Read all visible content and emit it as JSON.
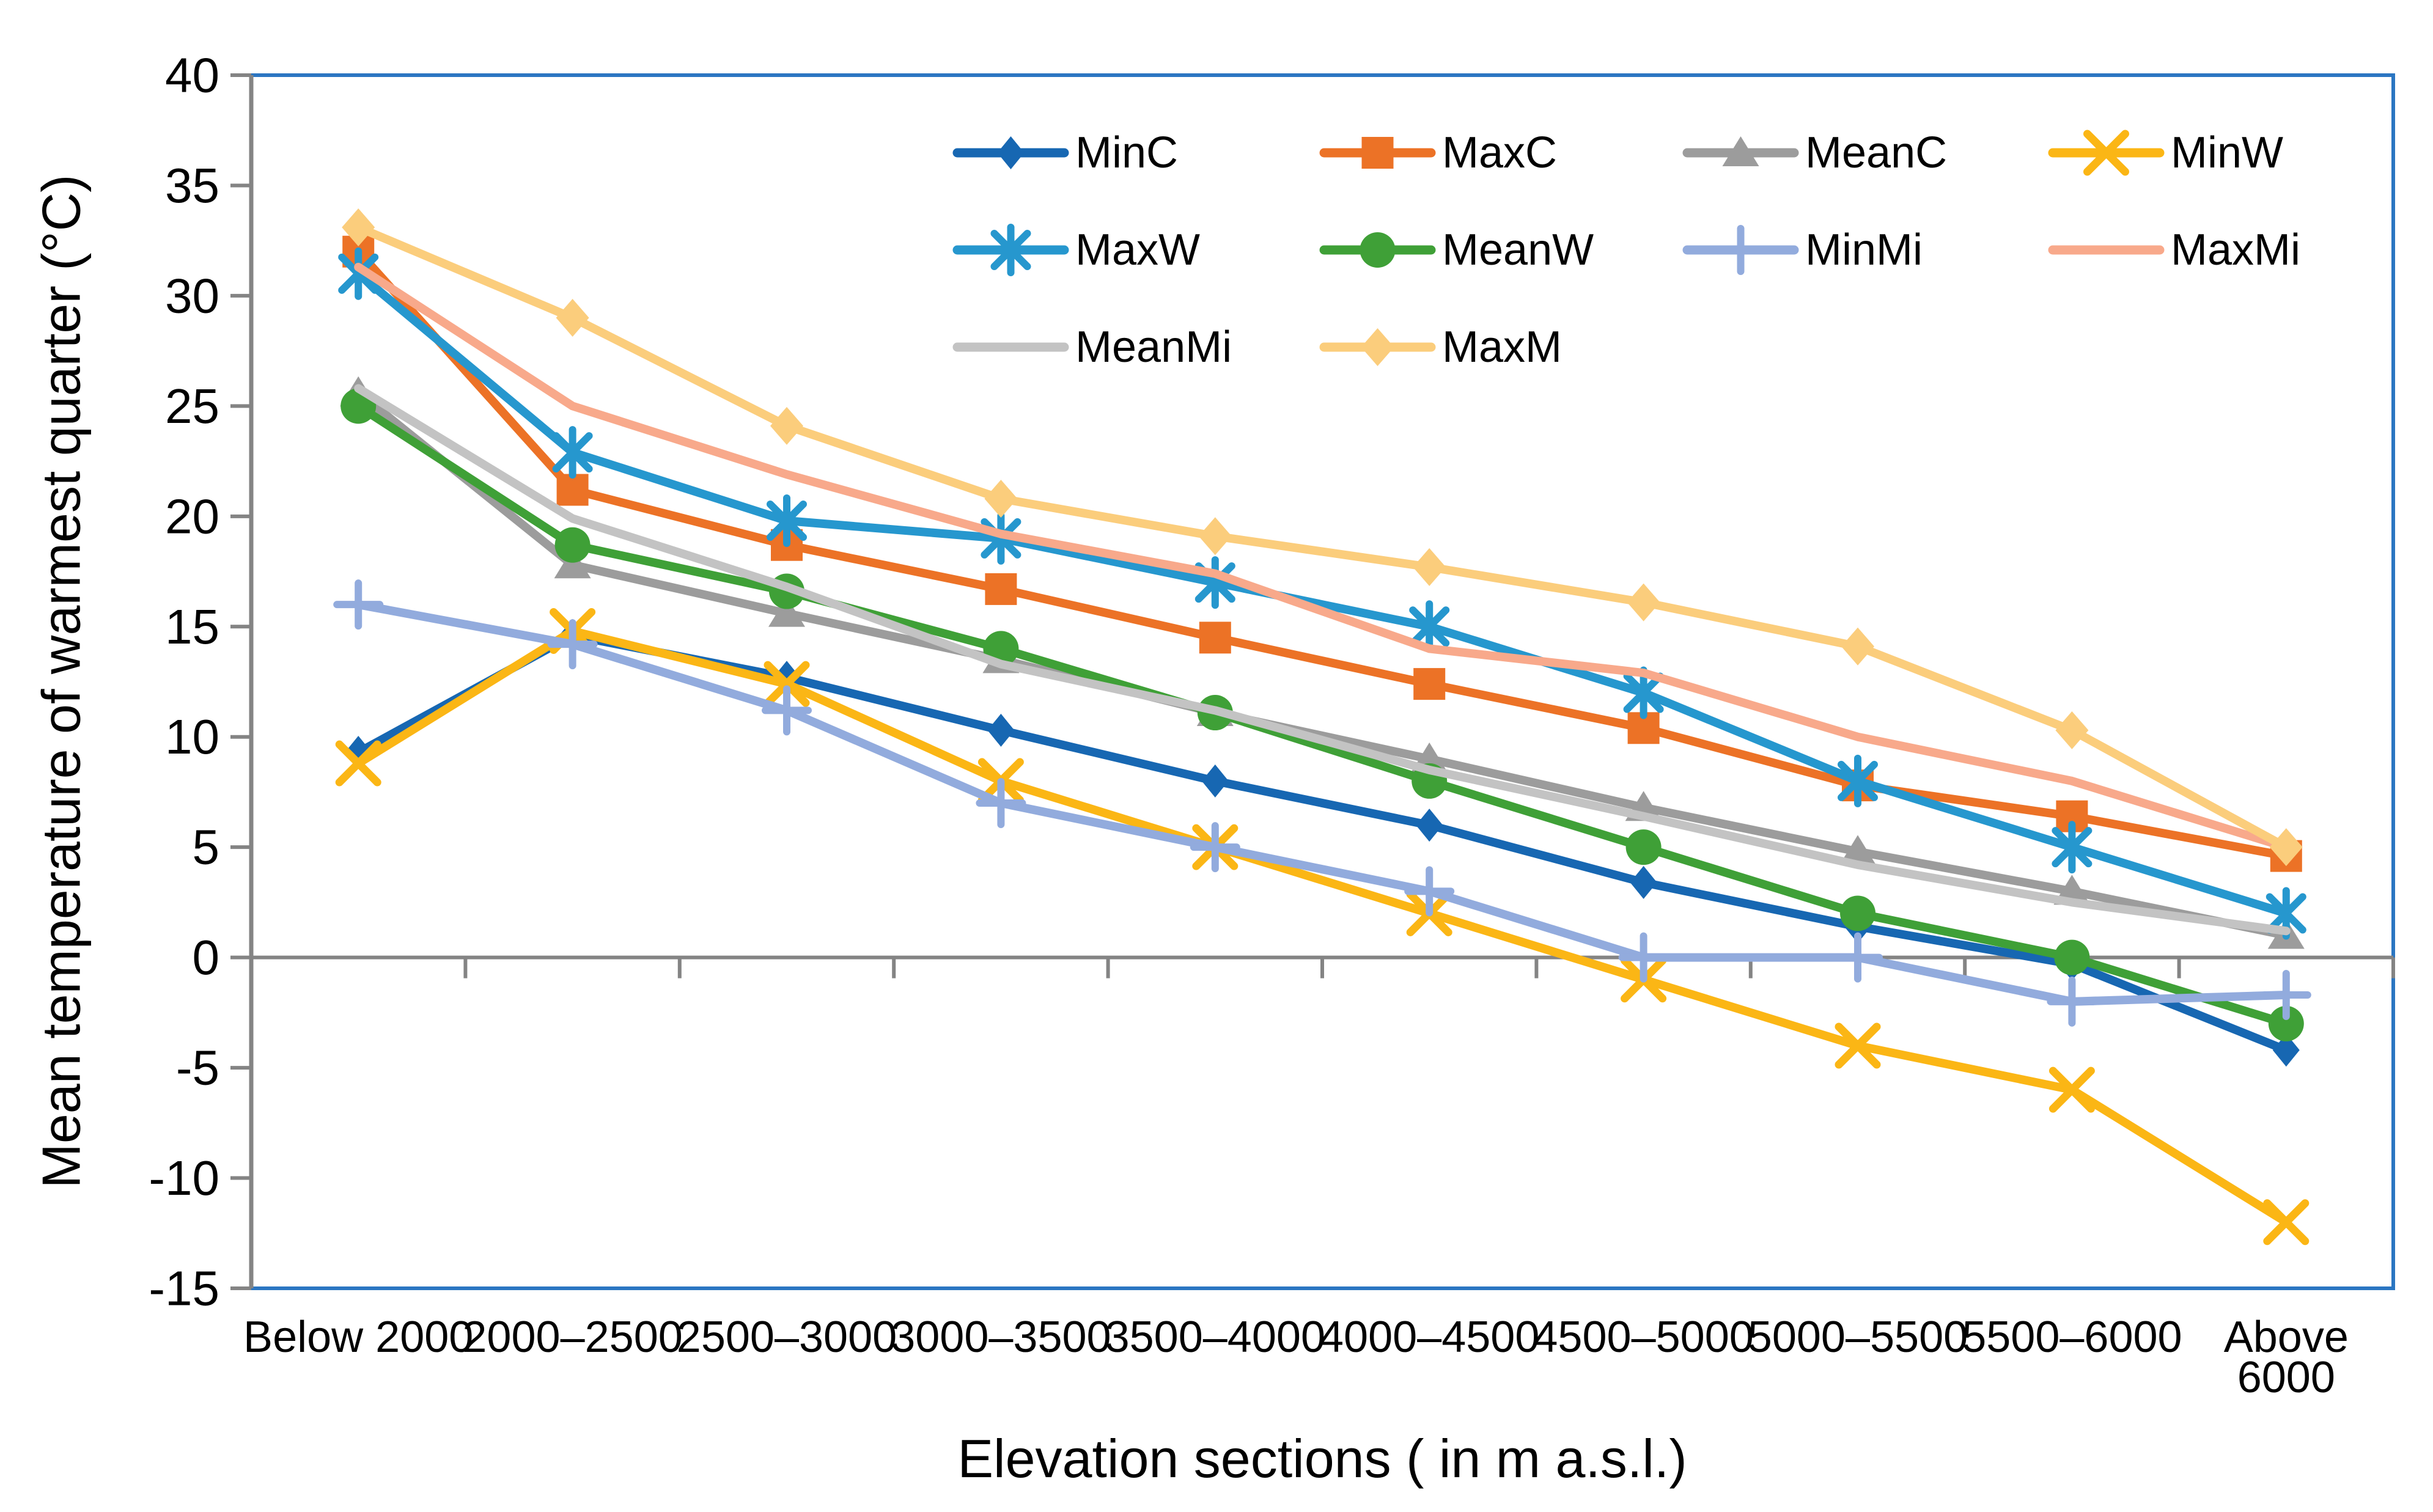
{
  "chart_data": {
    "type": "line",
    "title": "",
    "xlabel": "Elevation sections ( in m a.s.l.)",
    "ylabel": "Mean temperature of warmest quarter (°C)",
    "ylim": [
      -15,
      40
    ],
    "ytick_step": 5,
    "grid": false,
    "legend_position": "top-right-inside",
    "legend_columns": 4,
    "wrap_last_category": true,
    "categories": [
      "Below 2000",
      "2000–2500",
      "2500–3000",
      "3000–3500",
      "3500–4000",
      "4000–4500",
      "4500–5000",
      "5000–5500",
      "5500–6000",
      "Above 6000"
    ],
    "y_tick_labels": [
      "40",
      "35",
      "30",
      "25",
      "20",
      "15",
      "10",
      "5",
      "0",
      "-5",
      "-10",
      "-15"
    ],
    "series": [
      {
        "name": "MinC",
        "color": "#1767B2",
        "marker": "diamond",
        "values": [
          9.3,
          14.6,
          12.7,
          10.3,
          8.0,
          6.0,
          3.4,
          1.4,
          -0.3,
          -4.2
        ]
      },
      {
        "name": "MaxC",
        "color": "#EC7226",
        "marker": "square",
        "values": [
          32.0,
          21.2,
          18.7,
          16.7,
          14.5,
          12.4,
          10.4,
          7.8,
          6.4,
          4.6
        ]
      },
      {
        "name": "MeanC",
        "color": "#9C9C9C",
        "marker": "triangle",
        "values": [
          25.6,
          17.8,
          15.6,
          13.5,
          11.1,
          9.0,
          6.8,
          4.8,
          3.0,
          1.0
        ]
      },
      {
        "name": "MinW",
        "color": "#FBB615",
        "marker": "x",
        "values": [
          8.8,
          14.8,
          12.4,
          8.0,
          5.0,
          2.0,
          -1.0,
          -4.0,
          -6.0,
          -12.0
        ]
      },
      {
        "name": "MaxW",
        "color": "#2697CE",
        "marker": "asterisk",
        "values": [
          31.0,
          22.9,
          19.8,
          19.0,
          17.0,
          15.0,
          12.0,
          8.0,
          5.0,
          2.0
        ]
      },
      {
        "name": "MeanW",
        "color": "#3FA037",
        "marker": "circle",
        "values": [
          25.0,
          18.7,
          16.6,
          14.0,
          11.1,
          8.0,
          5.0,
          2.0,
          0.0,
          -3.0
        ]
      },
      {
        "name": "MinMi",
        "color": "#92ABDD",
        "marker": "plus",
        "values": [
          16.0,
          14.2,
          11.2,
          7.0,
          5.0,
          3.0,
          0.0,
          0.0,
          -2.0,
          -1.7
        ]
      },
      {
        "name": "MaxMi",
        "color": "#F8A98B",
        "marker": "none",
        "values": [
          31.3,
          25.0,
          21.9,
          19.2,
          17.4,
          14.0,
          12.9,
          10.0,
          8.0,
          5.0
        ]
      },
      {
        "name": "MeanMi",
        "color": "#C3C3C3",
        "marker": "none",
        "values": [
          25.8,
          19.9,
          16.8,
          13.3,
          11.2,
          8.5,
          6.4,
          4.2,
          2.5,
          1.2
        ]
      },
      {
        "name": "MaxM",
        "color": "#FBCD7C",
        "marker": "diamond-large",
        "values": [
          33.1,
          29.0,
          24.1,
          20.8,
          19.1,
          17.7,
          16.1,
          14.1,
          10.3,
          5.0
        ]
      }
    ],
    "styles": {
      "frame_color": "#2B76C2",
      "axis_color": "#848484",
      "text_color": "#000000",
      "background": "#FFFFFF"
    }
  }
}
